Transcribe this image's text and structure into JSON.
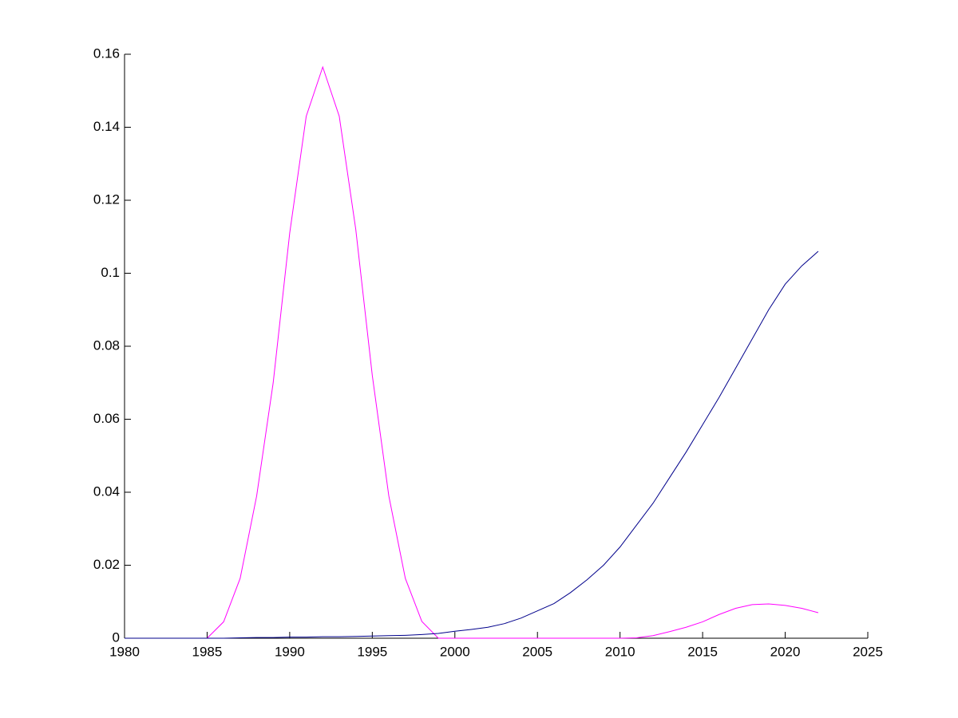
{
  "chart_data": {
    "type": "line",
    "x": [
      1980,
      1981,
      1982,
      1983,
      1984,
      1985,
      1986,
      1987,
      1988,
      1989,
      1990,
      1991,
      1992,
      1993,
      1994,
      1995,
      1996,
      1997,
      1998,
      1999,
      2000,
      2001,
      2002,
      2003,
      2004,
      2005,
      2006,
      2007,
      2008,
      2009,
      2010,
      2011,
      2012,
      2013,
      2014,
      2015,
      2016,
      2017,
      2018,
      2019,
      2020,
      2021,
      2022
    ],
    "series": [
      {
        "color": "#ff00ff",
        "values": [
          0,
          0,
          0,
          0,
          0,
          0,
          0.0045,
          0.0164,
          0.039,
          0.07,
          0.111,
          0.143,
          0.1565,
          0.143,
          0.112,
          0.072,
          0.039,
          0.0164,
          0.0046,
          0,
          0,
          0,
          0,
          0,
          0,
          0,
          0,
          0,
          0,
          0,
          0,
          0.0001,
          0.0007,
          0.0018,
          0.003,
          0.0045,
          0.0065,
          0.0082,
          0.0092,
          0.0094,
          0.009,
          0.0082,
          0.007
        ]
      },
      {
        "color": "#00008b",
        "values": [
          0,
          0,
          0,
          0,
          0,
          0,
          0,
          0.0001,
          0.0002,
          0.0002,
          0.0003,
          0.0003,
          0.0004,
          0.0004,
          0.0005,
          0.0006,
          0.0007,
          0.0008,
          0.001,
          0.0013,
          0.0019,
          0.0024,
          0.003,
          0.004,
          0.0055,
          0.0075,
          0.0095,
          0.0125,
          0.016,
          0.02,
          0.025,
          0.031,
          0.037,
          0.044,
          0.051,
          0.0585,
          0.066,
          0.074,
          0.082,
          0.09,
          0.097,
          0.102,
          0.106
        ]
      }
    ],
    "xlim": [
      1980,
      2025
    ],
    "xticks": [
      1980,
      1985,
      1990,
      1995,
      2000,
      2005,
      2010,
      2015,
      2020,
      2025
    ],
    "ylim": [
      0,
      0.16
    ],
    "yticks": [
      0,
      0.02,
      0.04,
      0.06,
      0.08,
      0.1,
      0.12,
      0.14,
      0.16
    ],
    "grid": false
  }
}
